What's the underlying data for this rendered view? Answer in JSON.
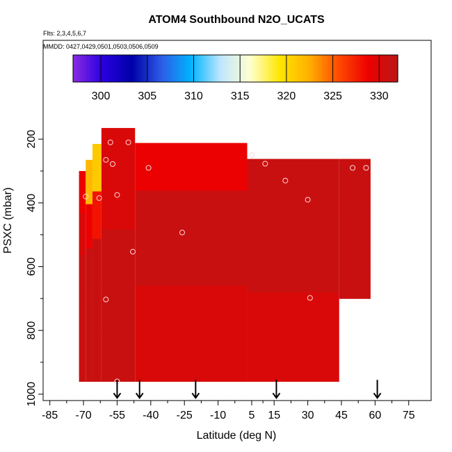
{
  "chart_data": {
    "type": "heatmap",
    "title": "ATOM4 Southbound N2O_UCATS",
    "subtitle_flights": "Flts: 2,3,4,5,6,7",
    "subtitle_dates": "MMDD: 0427,0429,0501,0503,0506,0509",
    "xlabel": "Latitude (deg N)",
    "ylabel": "PSXC (mbar)",
    "xlim": [
      -88,
      85
    ],
    "ylim": [
      1020,
      -110
    ],
    "y_inverted": true,
    "x_ticks": [
      -85,
      -70,
      -55,
      -40,
      -25,
      -10,
      5,
      15,
      30,
      45,
      60,
      75
    ],
    "y_ticks": [
      200,
      400,
      600,
      800,
      1000
    ],
    "colorbar": {
      "range": [
        297,
        332
      ],
      "ticks": [
        300,
        305,
        310,
        315,
        320,
        325,
        330
      ],
      "colors": [
        "#8a2be2",
        "#2a00e0",
        "#0000a8",
        "#2d5ce6",
        "#00b4ff",
        "#bfe6ff",
        "#ffffd0",
        "#ffe600",
        "#ffb000",
        "#ff4a00",
        "#ee0000",
        "#b81818"
      ]
    },
    "flight_markers_lat": [
      -55,
      -45,
      -20,
      16,
      61
    ],
    "observations": [
      {
        "lat": -58,
        "p": 210,
        "value": 330
      },
      {
        "lat": -50,
        "p": 210,
        "value": 329
      },
      {
        "lat": -60,
        "p": 265,
        "value": 328
      },
      {
        "lat": -57,
        "p": 278,
        "value": 329
      },
      {
        "lat": -41,
        "p": 290,
        "value": 330
      },
      {
        "lat": 5,
        "p": 250,
        "value": 331
      },
      {
        "lat": 11,
        "p": 277,
        "value": 331
      },
      {
        "lat": 20,
        "p": 330,
        "value": 331
      },
      {
        "lat": 30,
        "p": 390,
        "value": 331
      },
      {
        "lat": 50,
        "p": 290,
        "value": 331
      },
      {
        "lat": 56,
        "p": 290,
        "value": 331
      },
      {
        "lat": -63,
        "p": 385,
        "value": 331
      },
      {
        "lat": -55,
        "p": 375,
        "value": 331
      },
      {
        "lat": -69,
        "p": 380,
        "value": 331
      },
      {
        "lat": -26,
        "p": 493,
        "value": 331
      },
      {
        "lat": -48,
        "p": 553,
        "value": 331
      },
      {
        "lat": -60,
        "p": 703,
        "value": 331
      },
      {
        "lat": 31,
        "p": 698,
        "value": 331
      },
      {
        "lat": -55,
        "p": 960,
        "value": 331
      }
    ],
    "curtain_columns": [
      {
        "lat_min": -72,
        "lat_max": -69,
        "p_top": 300,
        "p_bot": 960,
        "values": [
          329,
          330,
          331,
          331,
          331
        ]
      },
      {
        "lat_min": -69,
        "lat_max": -66,
        "p_top": 265,
        "p_bot": 960,
        "values": [
          322,
          329,
          331,
          331,
          331
        ]
      },
      {
        "lat_min": -66,
        "lat_max": -62,
        "p_top": 215,
        "p_bot": 960,
        "values": [
          321,
          328,
          331,
          331,
          331
        ]
      },
      {
        "lat_min": -62,
        "lat_max": -47,
        "p_top": 165,
        "p_bot": 960,
        "values": [
          330,
          330,
          331,
          331,
          331
        ]
      },
      {
        "lat_min": -47,
        "lat_max": 3,
        "p_top": 212,
        "p_bot": 960,
        "values": [
          329,
          331,
          331,
          330,
          330
        ]
      },
      {
        "lat_min": 3,
        "lat_max": 44,
        "p_top": 262,
        "p_bot": 960,
        "values": [
          331,
          331,
          331,
          330,
          330
        ]
      },
      {
        "lat_min": 44,
        "lat_max": 58,
        "p_top": 262,
        "p_bot": 700,
        "values": [
          331,
          331,
          331,
          331,
          331
        ]
      }
    ]
  }
}
